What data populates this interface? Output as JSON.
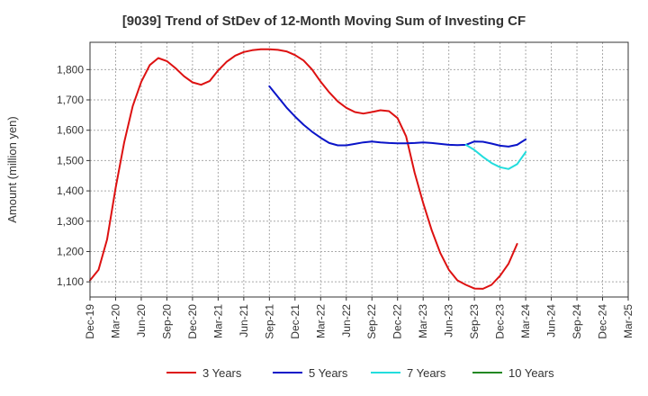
{
  "chart_data": {
    "type": "line",
    "title": "[9039]  Trend of StDev of 12-Month Moving Sum of Investing CF",
    "xlabel": "",
    "ylabel": "Amount (million yen)",
    "ylim": [
      1050,
      1890
    ],
    "yticks": [
      1100,
      1200,
      1300,
      1400,
      1500,
      1600,
      1700,
      1800
    ],
    "ytick_labels": [
      "1,100",
      "1,200",
      "1,300",
      "1,400",
      "1,500",
      "1,600",
      "1,700",
      "1,800"
    ],
    "xlim": [
      "2019-12",
      "2025-03"
    ],
    "xtick_labels": [
      "Dec-19",
      "Mar-20",
      "Jun-20",
      "Sep-20",
      "Dec-20",
      "Mar-21",
      "Jun-21",
      "Sep-21",
      "Dec-21",
      "Mar-22",
      "Jun-22",
      "Sep-22",
      "Dec-22",
      "Mar-23",
      "Jun-23",
      "Sep-23",
      "Dec-23",
      "Mar-24",
      "Jun-24",
      "Sep-24",
      "Dec-24",
      "Mar-25"
    ],
    "grid": true,
    "legend_position": "bottom",
    "colors": {
      "3 Years": "#dd1111",
      "5 Years": "#0a14c8",
      "7 Years": "#22dddd",
      "10 Years": "#228822"
    },
    "series": [
      {
        "name": "3 Years",
        "x": [
          "2019-12",
          "2020-01",
          "2020-02",
          "2020-03",
          "2020-04",
          "2020-05",
          "2020-06",
          "2020-07",
          "2020-08",
          "2020-09",
          "2020-10",
          "2020-11",
          "2020-12",
          "2021-01",
          "2021-02",
          "2021-03",
          "2021-04",
          "2021-05",
          "2021-06",
          "2021-07",
          "2021-08",
          "2021-09",
          "2021-10",
          "2021-11",
          "2021-12",
          "2022-01",
          "2022-02",
          "2022-03",
          "2022-04",
          "2022-05",
          "2022-06",
          "2022-07",
          "2022-08",
          "2022-09",
          "2022-10",
          "2022-11",
          "2022-12",
          "2023-01",
          "2023-02",
          "2023-03",
          "2023-04",
          "2023-05",
          "2023-06",
          "2023-07",
          "2023-08",
          "2023-09",
          "2023-10",
          "2023-11",
          "2023-12",
          "2024-01",
          "2024-02",
          "2024-03"
        ],
        "values": [
          1105,
          1140,
          1240,
          1410,
          1560,
          1680,
          1760,
          1815,
          1838,
          1828,
          1805,
          1778,
          1758,
          1750,
          1762,
          1797,
          1826,
          1846,
          1858,
          1864,
          1867,
          1867,
          1865,
          1860,
          1848,
          1830,
          1800,
          1760,
          1725,
          1695,
          1674,
          1660,
          1655,
          1660,
          1666,
          1663,
          1640,
          1580,
          1460,
          1360,
          1270,
          1195,
          1140,
          1105,
          1090,
          1078,
          1077,
          1090,
          1120,
          1160,
          1225,
          null
        ]
      },
      {
        "name": "5 Years",
        "x": [
          "2021-09",
          "2021-10",
          "2021-11",
          "2021-12",
          "2022-01",
          "2022-02",
          "2022-03",
          "2022-04",
          "2022-05",
          "2022-06",
          "2022-07",
          "2022-08",
          "2022-09",
          "2022-10",
          "2022-11",
          "2022-12",
          "2023-01",
          "2023-02",
          "2023-03",
          "2023-04",
          "2023-05",
          "2023-06",
          "2023-07",
          "2023-08",
          "2023-09",
          "2023-10",
          "2023-11",
          "2023-12",
          "2024-01",
          "2024-02",
          "2024-03"
        ],
        "values": [
          1745,
          1710,
          1675,
          1645,
          1618,
          1595,
          1575,
          1558,
          1550,
          1550,
          1555,
          1560,
          1563,
          1560,
          1558,
          1557,
          1557,
          1558,
          1560,
          1558,
          1555,
          1552,
          1551,
          1552,
          1563,
          1562,
          1556,
          1549,
          1546,
          1552,
          1570
        ]
      },
      {
        "name": "7 Years",
        "x": [
          "2023-08",
          "2023-09",
          "2023-10",
          "2023-11",
          "2023-12",
          "2024-01",
          "2024-02",
          "2024-03"
        ],
        "values": [
          1552,
          1535,
          1512,
          1492,
          1478,
          1472,
          1488,
          1528
        ]
      },
      {
        "name": "10 Years",
        "x": [],
        "values": []
      }
    ]
  }
}
